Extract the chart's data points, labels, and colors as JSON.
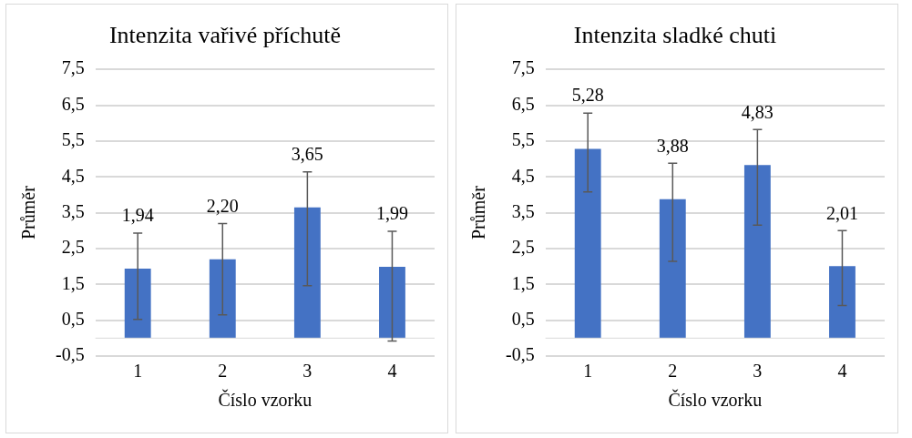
{
  "chart_data": [
    {
      "type": "bar",
      "title": "Intenzita vařivé příchutě",
      "xlabel": "Číslo vzorku",
      "ylabel": "Průměr",
      "categories": [
        "1",
        "2",
        "3",
        "4"
      ],
      "color": "#4472c4",
      "values": [
        1.94,
        2.2,
        3.65,
        1.99
      ],
      "value_labels": [
        "1,94",
        "2,20",
        "3,65",
        "1,99"
      ],
      "errors": [
        [
          0.52,
          2.93
        ],
        [
          0.65,
          3.2
        ],
        [
          1.46,
          4.64
        ],
        [
          -0.08,
          2.98
        ]
      ],
      "ylim": [
        -0.5,
        7.5
      ],
      "yticks": [
        {
          "value": -0.5,
          "label": "-0,5"
        },
        {
          "value": 0.5,
          "label": "0,5"
        },
        {
          "value": 1.5,
          "label": "1,5"
        },
        {
          "value": 2.5,
          "label": "2,5"
        },
        {
          "value": 3.5,
          "label": "3,5"
        },
        {
          "value": 4.5,
          "label": "4,5"
        },
        {
          "value": 5.5,
          "label": "5,5"
        },
        {
          "value": 6.5,
          "label": "6,5"
        },
        {
          "value": 7.5,
          "label": "7,5"
        }
      ],
      "grid": "y",
      "legend": false
    },
    {
      "type": "bar",
      "title": "Intenzita sladké chuti",
      "xlabel": "Číslo vzorku",
      "ylabel": "Průměr",
      "categories": [
        "1",
        "2",
        "3",
        "4"
      ],
      "color": "#4472c4",
      "values": [
        5.28,
        3.88,
        4.83,
        2.01
      ],
      "value_labels": [
        "5,28",
        "3,88",
        "4,83",
        "2,01"
      ],
      "errors": [
        [
          4.08,
          6.28
        ],
        [
          2.14,
          4.88
        ],
        [
          3.15,
          5.82
        ],
        [
          0.91,
          3.0
        ]
      ],
      "ylim": [
        -0.5,
        7.5
      ],
      "yticks": [
        {
          "value": -0.5,
          "label": "-0,5"
        },
        {
          "value": 0.5,
          "label": "0,5"
        },
        {
          "value": 1.5,
          "label": "1,5"
        },
        {
          "value": 2.5,
          "label": "2,5"
        },
        {
          "value": 3.5,
          "label": "3,5"
        },
        {
          "value": 4.5,
          "label": "4,5"
        },
        {
          "value": 5.5,
          "label": "5,5"
        },
        {
          "value": 6.5,
          "label": "6,5"
        },
        {
          "value": 7.5,
          "label": "7,5"
        }
      ],
      "grid": "y",
      "legend": false
    }
  ]
}
